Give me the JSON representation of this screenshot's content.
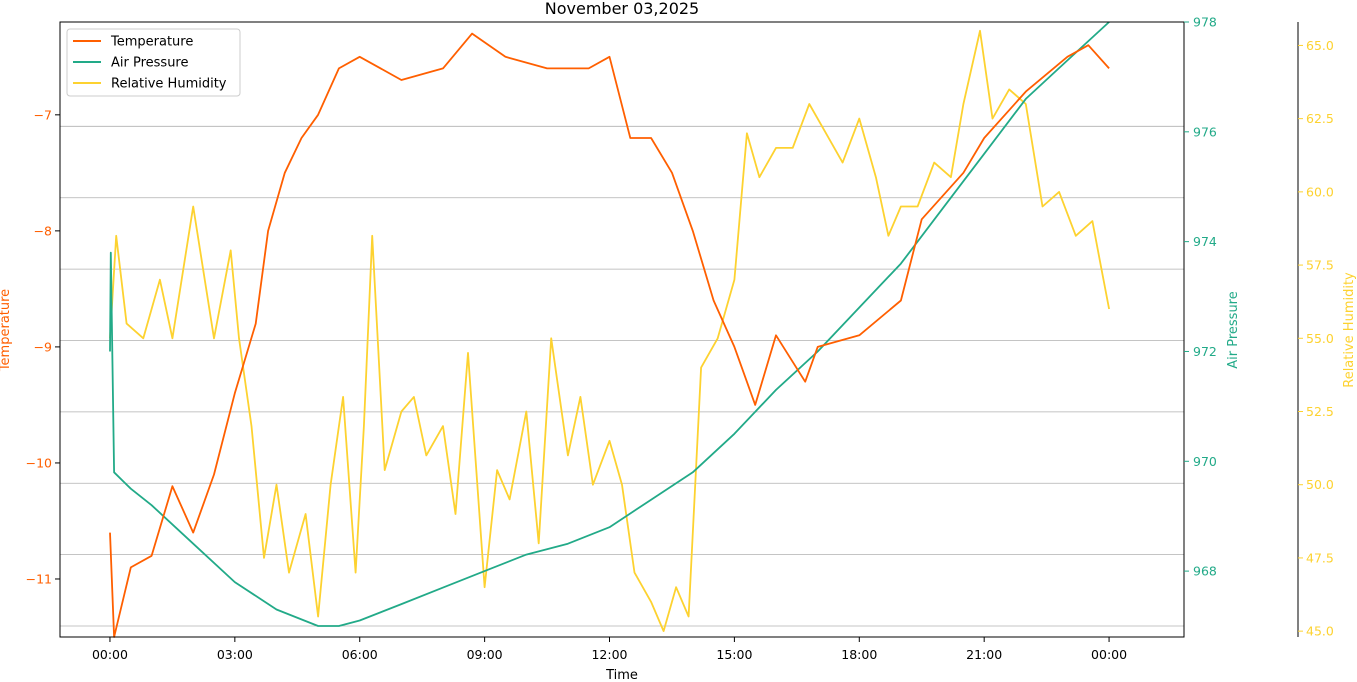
{
  "chart_data": {
    "type": "line",
    "title": "November 03,2025",
    "xlabel": "Time",
    "x_ticks": [
      "00:00",
      "03:00",
      "06:00",
      "09:00",
      "12:00",
      "15:00",
      "18:00",
      "21:00",
      "00:00"
    ],
    "x_range_hours": [
      -1.2,
      25.8
    ],
    "grid": "horizontal",
    "legend_position": "top-left",
    "axes": {
      "temperature": {
        "label": "Temperature",
        "color": "#ff5f00",
        "range": [
          -11.5,
          -6.2
        ],
        "ticks": [
          -11,
          -10,
          -9,
          -8,
          -7
        ]
      },
      "pressure": {
        "label": "Air Pressure",
        "color": "#22aa88",
        "range": [
          966.8,
          978.0
        ],
        "ticks": [
          968,
          970,
          972,
          974,
          976,
          978
        ]
      },
      "humidity": {
        "label": "Relative Humidity",
        "color": "#fdd230",
        "range": [
          44.8,
          65.8
        ],
        "ticks": [
          "45.0",
          "47.5",
          "50.0",
          "52.5",
          "55.0",
          "57.5",
          "60.0",
          "62.5",
          "65.0"
        ]
      }
    },
    "series": [
      {
        "name": "Temperature",
        "axis": "temperature",
        "color": "#ff5f00",
        "x": [
          0,
          0.1,
          0.5,
          1.0,
          1.5,
          2.0,
          2.5,
          3.0,
          3.5,
          3.8,
          4.2,
          4.6,
          5.0,
          5.5,
          6.0,
          7.0,
          8.0,
          8.7,
          9.5,
          10.5,
          11.5,
          12.0,
          12.5,
          13.0,
          13.5,
          14.0,
          14.5,
          15.0,
          15.5,
          16.0,
          16.7,
          17.0,
          18.0,
          19.0,
          19.5,
          20.5,
          21.0,
          22.0,
          23.0,
          23.5,
          24.0
        ],
        "y": [
          -10.6,
          -11.5,
          -10.9,
          -10.8,
          -10.2,
          -10.6,
          -10.1,
          -9.4,
          -8.8,
          -8.0,
          -7.5,
          -7.2,
          -7.0,
          -6.6,
          -6.5,
          -6.7,
          -6.6,
          -6.3,
          -6.5,
          -6.6,
          -6.6,
          -6.5,
          -7.2,
          -7.2,
          -7.5,
          -8.0,
          -8.6,
          -9.0,
          -9.5,
          -8.9,
          -9.3,
          -9.0,
          -8.9,
          -8.6,
          -7.9,
          -7.5,
          -7.2,
          -6.8,
          -6.5,
          -6.4,
          -6.6
        ]
      },
      {
        "name": "Air Pressure",
        "axis": "pressure",
        "color": "#22aa88",
        "x": [
          0,
          0.02,
          0.1,
          0.5,
          1.0,
          2.0,
          3.0,
          4.0,
          5.0,
          5.5,
          6.0,
          7.0,
          8.0,
          9.0,
          10.0,
          11.0,
          12.0,
          13.0,
          14.0,
          15.0,
          16.0,
          17.0,
          18.0,
          19.0,
          20.0,
          21.0,
          22.0,
          23.0,
          24.0
        ],
        "y": [
          972.0,
          973.8,
          969.8,
          969.5,
          969.2,
          968.5,
          967.8,
          967.3,
          967.0,
          967.0,
          967.1,
          967.4,
          967.7,
          968.0,
          968.3,
          968.5,
          968.8,
          969.3,
          969.8,
          970.5,
          971.3,
          972.0,
          972.8,
          973.6,
          974.6,
          975.6,
          976.6,
          977.3,
          978.0
        ]
      },
      {
        "name": "Relative Humidity",
        "axis": "humidity",
        "color": "#fdd230",
        "x": [
          0,
          0.15,
          0.4,
          0.8,
          1.2,
          1.5,
          2.0,
          2.5,
          2.9,
          3.1,
          3.4,
          3.7,
          4.0,
          4.3,
          4.7,
          5.0,
          5.3,
          5.6,
          5.9,
          6.1,
          6.3,
          6.6,
          7.0,
          7.3,
          7.6,
          8.0,
          8.3,
          8.6,
          9.0,
          9.3,
          9.6,
          10.0,
          10.3,
          10.6,
          11.0,
          11.3,
          11.6,
          12.0,
          12.3,
          12.6,
          13.0,
          13.3,
          13.6,
          13.9,
          14.2,
          14.6,
          15.0,
          15.3,
          15.6,
          16.0,
          16.4,
          16.8,
          17.2,
          17.6,
          18.0,
          18.4,
          18.7,
          19.0,
          19.4,
          19.8,
          20.2,
          20.5,
          20.9,
          21.2,
          21.6,
          22.0,
          22.4,
          22.8,
          23.2,
          23.6,
          23.8,
          24.0
        ],
        "y": [
          55.0,
          58.5,
          55.5,
          55.0,
          57.0,
          55.0,
          59.5,
          55.0,
          58.0,
          55.0,
          52.0,
          47.5,
          50.0,
          47.0,
          49.0,
          45.5,
          50.0,
          53.0,
          47.0,
          52.0,
          58.5,
          50.5,
          52.5,
          53.0,
          51.0,
          52.0,
          49.0,
          54.5,
          46.5,
          50.5,
          49.5,
          52.5,
          48.0,
          55.0,
          51.0,
          53.0,
          50.0,
          51.5,
          50.0,
          47.0,
          46.0,
          45.0,
          46.5,
          45.5,
          54.0,
          55.0,
          57.0,
          62.0,
          60.5,
          61.5,
          61.5,
          63.0,
          62.0,
          61.0,
          62.5,
          60.5,
          58.5,
          59.5,
          59.5,
          61.0,
          60.5,
          63.0,
          65.5,
          62.5,
          63.5,
          63.0,
          59.5,
          60.0,
          58.5,
          59.0,
          57.5,
          56.0
        ]
      }
    ]
  }
}
